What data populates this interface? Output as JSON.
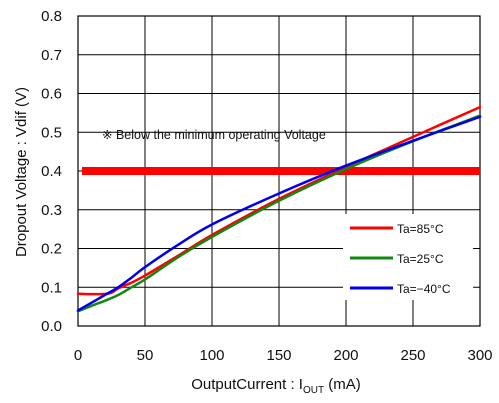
{
  "chart_data": {
    "type": "line",
    "xlabel_main": "OutputCurrent : I",
    "xlabel_sub": "OUT",
    "xlabel_unit": " (mA)",
    "ylabel": "Dropout Voltage : Vdif (V)",
    "xlim": [
      0,
      300
    ],
    "ylim": [
      0,
      0.8
    ],
    "x_ticks": [
      "0",
      "50",
      "100",
      "150",
      "200",
      "250",
      "300"
    ],
    "y_ticks": [
      "0.0",
      "0.1",
      "0.2",
      "0.3",
      "0.4",
      "0.5",
      "0.6",
      "0.7",
      "0.8"
    ],
    "grid": true,
    "legend_position": "lower-right",
    "annotation": "※ Below the minimum operating Voltage",
    "threshold": {
      "y": 0.4,
      "x_start": 3,
      "x_end": 300,
      "color": "#ff0000"
    },
    "series": [
      {
        "name": "Ta=85°C",
        "color": "#ff0000",
        "x": [
          0,
          22,
          30,
          40,
          50,
          75,
          100,
          150,
          200,
          250,
          300
        ],
        "y": [
          0.083,
          0.083,
          0.097,
          0.112,
          0.13,
          0.182,
          0.235,
          0.328,
          0.41,
          0.488,
          0.565
        ]
      },
      {
        "name": "Ta=25°C",
        "color": "#118811",
        "x": [
          0,
          10,
          20,
          30,
          40,
          50,
          75,
          100,
          150,
          200,
          250,
          300
        ],
        "y": [
          0.038,
          0.052,
          0.065,
          0.08,
          0.1,
          0.12,
          0.178,
          0.23,
          0.323,
          0.405,
          0.477,
          0.543
        ]
      },
      {
        "name": "Ta=−40°C",
        "color": "#0000ee",
        "x": [
          0,
          10,
          20,
          30,
          40,
          50,
          75,
          100,
          150,
          200,
          250,
          300
        ],
        "y": [
          0.04,
          0.06,
          0.08,
          0.1,
          0.125,
          0.152,
          0.21,
          0.262,
          0.342,
          0.414,
          0.478,
          0.54
        ]
      }
    ]
  }
}
